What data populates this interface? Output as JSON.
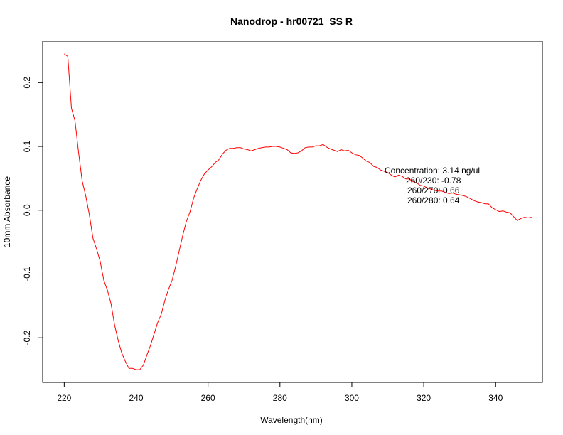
{
  "chart_data": {
    "type": "line",
    "title": "Nanodrop - hr00721_SS R",
    "xlabel": "Wavelength(nm)",
    "ylabel": "10mm Absorbance",
    "xlim": [
      214,
      353
    ],
    "ylim": [
      -0.27,
      0.265
    ],
    "x_ticks": [
      220,
      240,
      260,
      280,
      300,
      320,
      340
    ],
    "y_ticks": [
      -0.2,
      -0.1,
      0.0,
      0.1,
      0.2
    ],
    "x_tick_labels": [
      "220",
      "240",
      "260",
      "280",
      "300",
      "320",
      "340"
    ],
    "y_tick_labels": [
      "-0.2",
      "-0.1",
      "0.0",
      "0.1",
      "0.2"
    ],
    "grid": false,
    "legend": "none",
    "series": [
      {
        "color": "#ff0000",
        "x": [
          220,
          221,
          222,
          223,
          224,
          225,
          226,
          227,
          228,
          229,
          230,
          231,
          232,
          233,
          234,
          235,
          236,
          237,
          238,
          239,
          240,
          241,
          242,
          243,
          244,
          245,
          246,
          247,
          248,
          249,
          250,
          251,
          252,
          253,
          254,
          255,
          256,
          257,
          258,
          259,
          260,
          261,
          262,
          263,
          264,
          265,
          266,
          267,
          268,
          269,
          270,
          271,
          272,
          273,
          274,
          275,
          276,
          277,
          278,
          279,
          280,
          281,
          282,
          283,
          284,
          285,
          286,
          287,
          288,
          289,
          290,
          291,
          292,
          293,
          294,
          295,
          296,
          297,
          298,
          299,
          300,
          301,
          302,
          303,
          304,
          305,
          306,
          307,
          308,
          309,
          310,
          311,
          312,
          313,
          314,
          315,
          316,
          317,
          318,
          319,
          320,
          321,
          322,
          323,
          324,
          325,
          326,
          327,
          328,
          329,
          330,
          331,
          332,
          333,
          334,
          335,
          336,
          337,
          338,
          339,
          340,
          341,
          342,
          343,
          344,
          345,
          346,
          347,
          348,
          349,
          350
        ],
        "y": [
          0.245,
          0.241,
          0.16,
          0.14,
          0.09,
          0.046,
          0.022,
          -0.007,
          -0.044,
          -0.061,
          -0.08,
          -0.11,
          -0.125,
          -0.146,
          -0.18,
          -0.204,
          -0.224,
          -0.237,
          -0.248,
          -0.248,
          -0.25,
          -0.25,
          -0.243,
          -0.227,
          -0.212,
          -0.194,
          -0.176,
          -0.163,
          -0.141,
          -0.124,
          -0.11,
          -0.088,
          -0.063,
          -0.039,
          -0.017,
          -0.002,
          0.019,
          0.034,
          0.047,
          0.057,
          0.063,
          0.068,
          0.075,
          0.079,
          0.088,
          0.094,
          0.097,
          0.097,
          0.098,
          0.098,
          0.096,
          0.095,
          0.093,
          0.095,
          0.097,
          0.098,
          0.099,
          0.099,
          0.1,
          0.1,
          0.099,
          0.097,
          0.095,
          0.09,
          0.089,
          0.09,
          0.093,
          0.098,
          0.099,
          0.099,
          0.101,
          0.101,
          0.103,
          0.099,
          0.096,
          0.094,
          0.092,
          0.095,
          0.093,
          0.094,
          0.09,
          0.087,
          0.086,
          0.082,
          0.077,
          0.075,
          0.069,
          0.067,
          0.063,
          0.061,
          0.059,
          0.055,
          0.052,
          0.055,
          0.053,
          0.049,
          0.049,
          0.045,
          0.043,
          0.039,
          0.038,
          0.035,
          0.033,
          0.031,
          0.03,
          0.03,
          0.028,
          0.026,
          0.027,
          0.025,
          0.024,
          0.023,
          0.021,
          0.018,
          0.015,
          0.013,
          0.012,
          0.01,
          0.01,
          0.004,
          0.001,
          -0.002,
          -0.001,
          -0.003,
          -0.004,
          -0.01,
          -0.016,
          -0.013,
          -0.011,
          -0.012,
          -0.011
        ]
      }
    ],
    "annotations": [
      "Concentration: 3.14 ng/ul",
      "260/230: -0.78",
      "260/270: 0.66",
      "260/280: 0.64"
    ]
  }
}
